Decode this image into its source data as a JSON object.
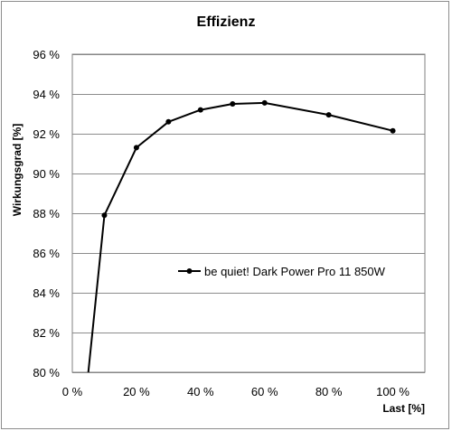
{
  "chart_data": {
    "type": "line",
    "title": "Effizienz",
    "xlabel": "Last [%]",
    "ylabel": "Wirkungsgrad [%]",
    "xlim": [
      0,
      110
    ],
    "ylim": [
      80,
      96
    ],
    "x_ticks": [
      0,
      20,
      40,
      60,
      80,
      100
    ],
    "x_tick_labels": [
      "0 %",
      "20 %",
      "40 %",
      "60 %",
      "80 %",
      "100 %"
    ],
    "y_ticks": [
      80,
      82,
      84,
      86,
      88,
      90,
      92,
      94,
      96
    ],
    "y_tick_labels": [
      "80 %",
      "82 %",
      "84 %",
      "86 %",
      "88 %",
      "90 %",
      "92 %",
      "94 %",
      "96 %"
    ],
    "grid": "horizontal",
    "legend_position": "right-center",
    "series": [
      {
        "name": "be quiet! Dark Power Pro 11 850W",
        "color": "#000000",
        "marker": "circle",
        "points": [
          {
            "x": 5,
            "y": 80.0,
            "marker": false
          },
          {
            "x": 10,
            "y": 87.9,
            "marker": true
          },
          {
            "x": 20,
            "y": 91.3,
            "marker": true
          },
          {
            "x": 30,
            "y": 92.6,
            "marker": true
          },
          {
            "x": 40,
            "y": 93.2,
            "marker": true
          },
          {
            "x": 50,
            "y": 93.5,
            "marker": true
          },
          {
            "x": 60,
            "y": 93.55,
            "marker": true
          },
          {
            "x": 80,
            "y": 92.95,
            "marker": true
          },
          {
            "x": 100,
            "y": 92.15,
            "marker": true
          }
        ]
      }
    ]
  }
}
